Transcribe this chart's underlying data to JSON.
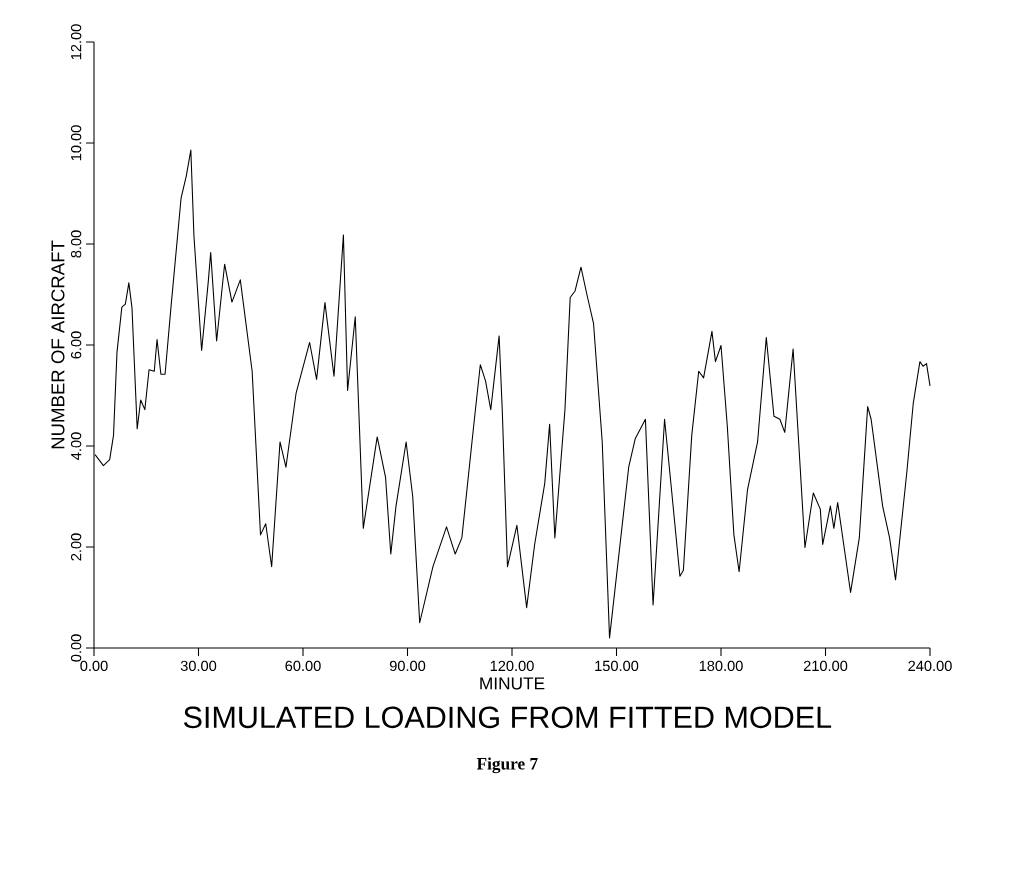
{
  "chart_data": {
    "type": "line",
    "title": "SIMULATED LOADING FROM FITTED MODEL",
    "xlabel": "MINUTE",
    "ylabel": "NUMBER OF AIRCRAFT",
    "annotations": [
      "Figure 7"
    ],
    "color": "#000000",
    "marker": "none",
    "x": [
      0.3,
      2.7,
      4.5,
      5.6,
      6.6,
      8.0,
      9.0,
      10.0,
      10.9,
      12.4,
      13.4,
      14.6,
      15.8,
      17.3,
      18.1,
      19.2,
      20.4,
      22.1,
      25.0,
      26.5,
      27.8,
      28.7,
      30.9,
      32.8,
      33.5,
      35.2,
      37.5,
      39.6,
      42.0,
      45.4,
      47.8,
      49.3,
      51.0,
      53.4,
      55.1,
      58.0,
      61.9,
      63.9,
      66.3,
      68.9,
      71.6,
      72.8,
      75.0,
      77.3,
      81.3,
      83.7,
      85.2,
      86.7,
      89.6,
      91.5,
      93.5,
      97.3,
      101.2,
      103.7,
      105.6,
      109.0,
      110.9,
      112.4,
      113.9,
      116.3,
      117.2,
      118.7,
      121.4,
      124.2,
      126.5,
      129.4,
      130.8,
      132.3,
      135.2,
      136.7,
      138.1,
      139.8,
      141.5,
      143.4,
      145.9,
      148.0,
      153.5,
      155.4,
      158.3,
      160.5,
      163.4,
      163.8,
      165.8,
      168.2,
      169.2,
      171.6,
      173.6,
      175.0,
      177.4,
      178.4,
      180.0,
      181.8,
      183.7,
      185.2,
      187.6,
      190.5,
      193.0,
      195.2,
      196.9,
      198.3,
      200.7,
      204.1,
      206.5,
      208.5,
      209.2,
      211.4,
      212.4,
      213.5,
      217.2,
      219.7,
      222.1,
      223.1,
      226.4,
      228.4,
      230.1,
      233.3,
      235.2,
      237.1,
      238.0,
      239.0,
      240.0
    ],
    "values": [
      3.83,
      3.61,
      3.73,
      4.21,
      5.86,
      6.75,
      6.81,
      7.23,
      6.74,
      4.34,
      4.91,
      4.72,
      5.51,
      5.48,
      6.11,
      5.42,
      5.42,
      6.75,
      8.91,
      9.35,
      9.86,
      8.15,
      5.89,
      7.25,
      7.83,
      6.08,
      7.6,
      6.85,
      7.29,
      5.48,
      2.24,
      2.46,
      1.61,
      4.08,
      3.58,
      5.04,
      6.05,
      5.32,
      6.84,
      5.38,
      8.18,
      5.1,
      6.56,
      2.37,
      4.18,
      3.38,
      1.86,
      2.81,
      4.08,
      3.0,
      0.5,
      1.61,
      2.4,
      1.86,
      2.18,
      4.4,
      5.61,
      5.29,
      4.72,
      6.18,
      4.72,
      1.61,
      2.43,
      0.8,
      2.05,
      3.26,
      4.43,
      2.18,
      4.72,
      6.94,
      7.07,
      7.54,
      7.0,
      6.43,
      4.08,
      0.2,
      3.58,
      4.15,
      4.53,
      0.85,
      4.08,
      4.53,
      3.13,
      1.42,
      1.54,
      4.21,
      5.48,
      5.35,
      6.27,
      5.67,
      5.99,
      4.4,
      2.24,
      1.51,
      3.13,
      4.08,
      6.15,
      4.59,
      4.53,
      4.27,
      5.92,
      1.99,
      3.07,
      2.75,
      2.05,
      2.81,
      2.37,
      2.88,
      1.1,
      2.18,
      4.78,
      4.53,
      2.81,
      2.18,
      1.35,
      3.45,
      4.85,
      5.67,
      5.58,
      5.63,
      5.19
    ],
    "xlim": [
      0,
      240
    ],
    "ylim": [
      0,
      12
    ],
    "xticks": [
      {
        "value": 0,
        "label": "0.00"
      },
      {
        "value": 30,
        "label": "30.00"
      },
      {
        "value": 60,
        "label": "60.00"
      },
      {
        "value": 90,
        "label": "90.00"
      },
      {
        "value": 120,
        "label": "120.00"
      },
      {
        "value": 150,
        "label": "150.00"
      },
      {
        "value": 180,
        "label": "180.00"
      },
      {
        "value": 210,
        "label": "210.00"
      },
      {
        "value": 240,
        "label": "240.00"
      }
    ],
    "yticks": [
      {
        "value": 0,
        "label": "0.00"
      },
      {
        "value": 2,
        "label": "2.00"
      },
      {
        "value": 4,
        "label": "4.00"
      },
      {
        "value": 6,
        "label": "6.00"
      },
      {
        "value": 8,
        "label": "8.00"
      },
      {
        "value": 10,
        "label": "10.00"
      },
      {
        "value": 12,
        "label": "12.00"
      }
    ]
  }
}
